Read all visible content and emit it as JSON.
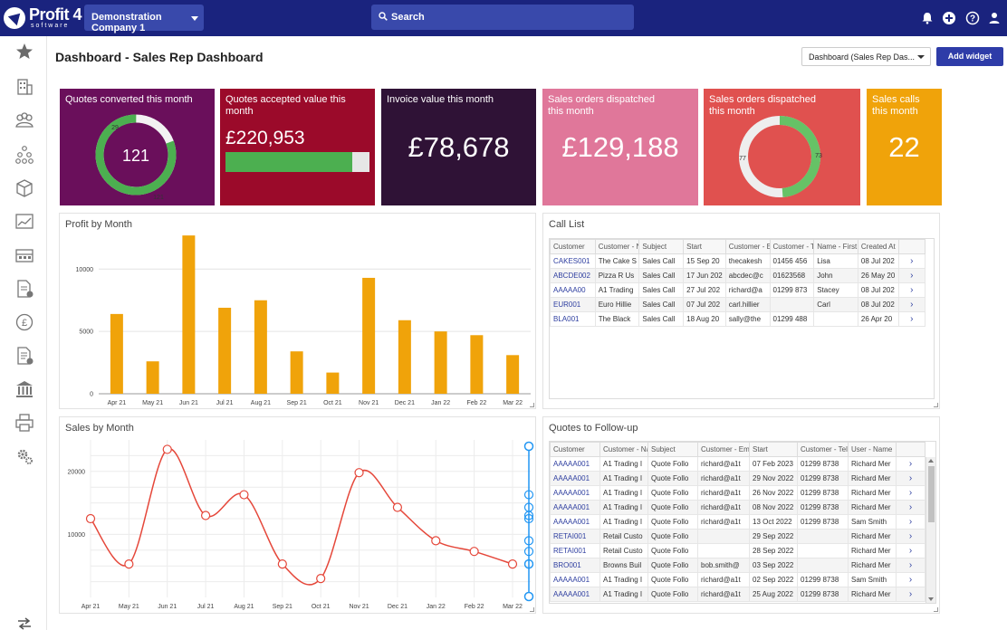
{
  "topbar": {
    "logo_text": "Profit 4",
    "logo_sub": "software",
    "company": "Demonstration Company 1",
    "search_label": "Search"
  },
  "header": {
    "title": "Dashboard - Sales Rep Dashboard",
    "dashboard_select": "Dashboard (Sales Rep Das...",
    "add_widget": "Add widget"
  },
  "tiles": {
    "quotes_converted": {
      "title": "Quotes converted this month",
      "value": "121",
      "segment_small": "29",
      "segment_large": "121",
      "color": "#6a0f5b"
    },
    "quotes_accepted": {
      "title": "Quotes accepted value this month",
      "value": "£220,953",
      "progress_fraction": 0.88,
      "color": "#9b0a2a"
    },
    "invoice_value": {
      "title": "Invoice value this month",
      "value": "£78,678",
      "color": "#2f1236"
    },
    "sales_orders_1": {
      "title": "Sales orders dispatched this month",
      "value": "£129,188",
      "color": "#e0779a"
    },
    "sales_orders_2": {
      "title": "Sales orders dispatched this month",
      "segment_left": "77",
      "segment_right": "73",
      "color": "#e0514f"
    },
    "sales_calls": {
      "title": "Sales calls this month",
      "value": "22",
      "color": "#f0a30a"
    }
  },
  "profit_chart": {
    "panel_title": "Profit by Month",
    "chart_data": {
      "type": "bar",
      "title": "Profit by Month",
      "categories": [
        "Apr 21",
        "May 21",
        "Jun 21",
        "Jul 21",
        "Aug 21",
        "Sep 21",
        "Oct 21",
        "Nov 21",
        "Dec 21",
        "Jan 22",
        "Feb 22",
        "Mar 22"
      ],
      "values": [
        6400,
        2600,
        12700,
        6900,
        7500,
        3400,
        1700,
        9300,
        5900,
        5000,
        4700,
        3100
      ],
      "yticks": [
        0,
        5000,
        10000
      ],
      "ylim": [
        0,
        13000
      ],
      "color": "#f0a30a"
    }
  },
  "sales_chart": {
    "panel_title": "Sales by Month",
    "chart_data": {
      "type": "line",
      "title": "Sales by Month",
      "categories": [
        "Apr 21",
        "May 21",
        "Jun 21",
        "Jul 21",
        "Aug 21",
        "Sep 21",
        "Oct 21",
        "Nov 21",
        "Dec 21",
        "Jan 22",
        "Feb 22",
        "Mar 22"
      ],
      "values": [
        12500,
        5300,
        23500,
        13000,
        16300,
        5300,
        3000,
        19800,
        14300,
        9000,
        7300,
        5300
      ],
      "yticks": [
        10000,
        20000
      ],
      "ylim": [
        0,
        25000
      ],
      "color": "#e5473a"
    }
  },
  "call_list": {
    "panel_title": "Call List",
    "columns": [
      "Customer",
      "Customer - Na",
      "Subject",
      "Start",
      "Customer - Em",
      "Customer - Te",
      "Name - First N",
      "Created At"
    ],
    "rows": [
      [
        "CAKES001",
        "The Cake S",
        "Sales Call",
        "15 Sep 20",
        "thecakesh",
        "01456 456",
        "Lisa",
        "08 Jul 202"
      ],
      [
        "ABCDE002",
        "Pizza R Us",
        "Sales Call",
        "17 Jun 202",
        "abcdec@c",
        "01623568",
        "John",
        "26 May 20"
      ],
      [
        "AAAAA00",
        "A1 Trading",
        "Sales Call",
        "27 Jul 202",
        "richard@a",
        "01299 873",
        "Stacey",
        "08 Jul 202"
      ],
      [
        "EUR001",
        "Euro Hillie",
        "Sales Call",
        "07 Jul 202",
        "carl.hillier",
        "",
        "Carl",
        "08 Jul 202"
      ],
      [
        "BLA001",
        "The Black",
        "Sales Call",
        "18 Aug 20",
        "sally@the",
        "01299 488",
        "",
        "26 Apr 20"
      ]
    ]
  },
  "quotes_followup": {
    "panel_title": "Quotes to Follow-up",
    "columns": [
      "Customer",
      "Customer - Nam",
      "Subject",
      "Customer - Emai",
      "Start",
      "Customer - Tele",
      "User - Name"
    ],
    "rows": [
      [
        "AAAAA001",
        "A1 Trading I",
        "Quote Follo",
        "richard@a1t",
        "07 Feb 2023",
        "01299 8738",
        "Richard Mer"
      ],
      [
        "AAAAA001",
        "A1 Trading I",
        "Quote Follo",
        "richard@a1t",
        "29 Nov 2022",
        "01299 8738",
        "Richard Mer"
      ],
      [
        "AAAAA001",
        "A1 Trading I",
        "Quote Follo",
        "richard@a1t",
        "26 Nov 2022",
        "01299 8738",
        "Richard Mer"
      ],
      [
        "AAAAA001",
        "A1 Trading I",
        "Quote Follo",
        "richard@a1t",
        "08 Nov 2022",
        "01299 8738",
        "Richard Mer"
      ],
      [
        "AAAAA001",
        "A1 Trading I",
        "Quote Follo",
        "richard@a1t",
        "13 Oct 2022",
        "01299 8738",
        "Sam Smith"
      ],
      [
        "RETAI001",
        "Retail Custo",
        "Quote Follo",
        "",
        "29 Sep 2022",
        "",
        "Richard Mer"
      ],
      [
        "RETAI001",
        "Retail Custo",
        "Quote Follo",
        "",
        "28 Sep 2022",
        "",
        "Richard Mer"
      ],
      [
        "BRO001",
        "Browns Buil",
        "Quote Follo",
        "bob.smith@",
        "03 Sep 2022",
        "",
        "Richard Mer"
      ],
      [
        "AAAAA001",
        "A1 Trading I",
        "Quote Follo",
        "richard@a1t",
        "02 Sep 2022",
        "01299 8738",
        "Sam Smith"
      ],
      [
        "AAAAA001",
        "A1 Trading I",
        "Quote Follo",
        "richard@a1t",
        "25 Aug 2022",
        "01299 8738",
        "Richard Mer"
      ]
    ]
  }
}
